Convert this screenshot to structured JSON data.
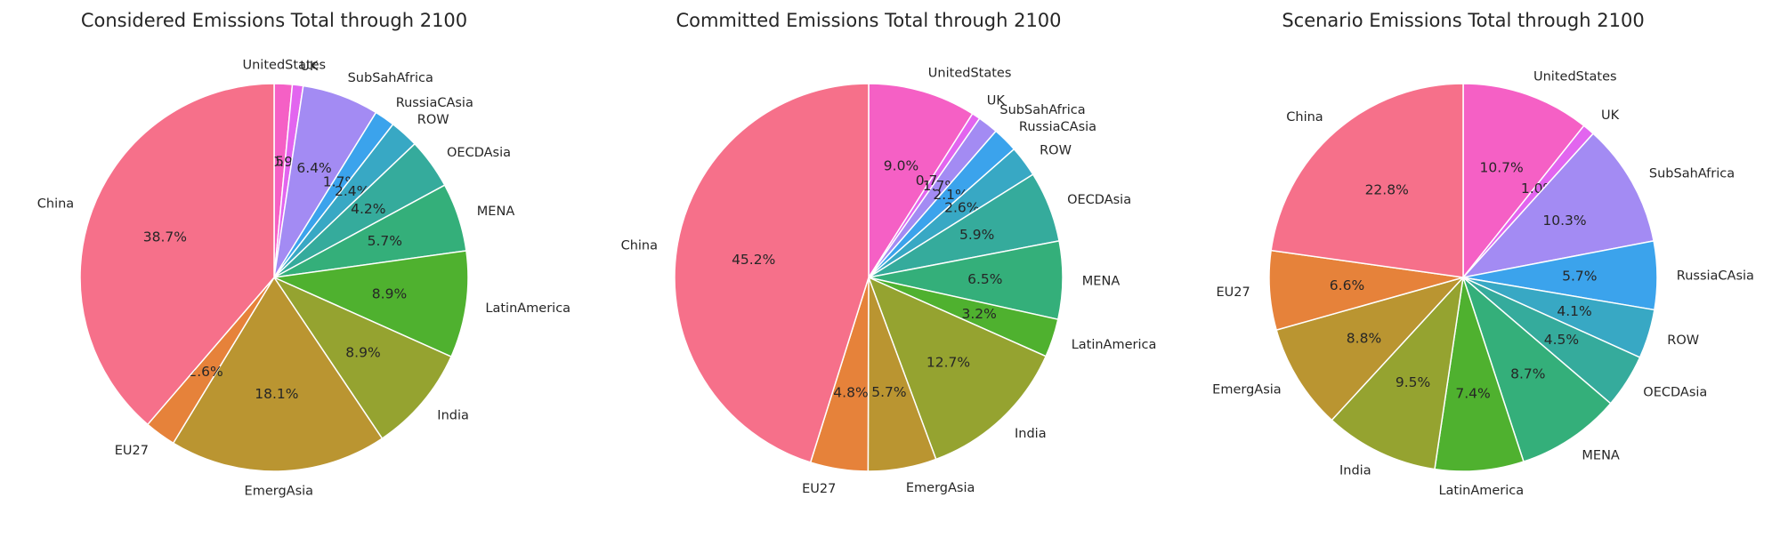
{
  "regions": [
    "UnitedStates",
    "UK",
    "SubSahAfrica",
    "RussiaCAsia",
    "ROW",
    "OECDAsia",
    "MENA",
    "LatinAmerica",
    "India",
    "EmergAsia",
    "EU27",
    "China"
  ],
  "colors": [
    "#f560c5",
    "#e265ef",
    "#a38bf3",
    "#3ba3ec",
    "#38a8c4",
    "#35ab9c",
    "#34af7a",
    "#4fb12f",
    "#95a330",
    "#ba9531",
    "#e6823a",
    "#f6708a"
  ],
  "chart_data": [
    {
      "type": "pie",
      "title": "Considered Emissions Total through 2100",
      "labels": [
        "UnitedStates",
        "UK",
        "SubSahAfrica",
        "RussiaCAsia",
        "ROW",
        "OECDAsia",
        "MENA",
        "LatinAmerica",
        "India",
        "EmergAsia",
        "EU27",
        "China"
      ],
      "values": [
        1.5,
        0.9,
        6.4,
        1.7,
        2.4,
        4.2,
        5.7,
        8.9,
        8.9,
        18.1,
        2.6,
        38.7
      ],
      "autopct_labels": [
        "1.5%",
        "0.9%",
        "6.4%",
        "1.7%",
        "2.4%",
        "4.2%",
        "5.7%",
        "8.9%",
        "8.9%",
        "18.1%",
        "2.6%",
        "38.7%"
      ],
      "start_angle": 90,
      "direction": "clockwise"
    },
    {
      "type": "pie",
      "title": "Committed Emissions Total through 2100",
      "labels": [
        "UnitedStates",
        "UK",
        "SubSahAfrica",
        "RussiaCAsia",
        "ROW",
        "OECDAsia",
        "MENA",
        "LatinAmerica",
        "India",
        "EmergAsia",
        "EU27",
        "China"
      ],
      "values": [
        9.0,
        0.7,
        1.7,
        2.1,
        2.6,
        5.9,
        6.5,
        3.2,
        12.7,
        5.7,
        4.8,
        45.2
      ],
      "autopct_labels": [
        "9.0%",
        "0.7%",
        "1.7%",
        "2.1%",
        "2.6%",
        "5.9%",
        "6.5%",
        "3.2%",
        "12.7%",
        "5.7%",
        "4.8%",
        "45.2%"
      ],
      "start_angle": 90,
      "direction": "clockwise"
    },
    {
      "type": "pie",
      "title": "Scenario Emissions Total through 2100",
      "labels": [
        "UnitedStates",
        "UK",
        "SubSahAfrica",
        "RussiaCAsia",
        "ROW",
        "OECDAsia",
        "MENA",
        "LatinAmerica",
        "India",
        "EmergAsia",
        "EU27",
        "China"
      ],
      "values": [
        10.7,
        1.0,
        10.3,
        5.7,
        4.1,
        4.5,
        8.7,
        7.4,
        9.5,
        8.8,
        6.6,
        22.8
      ],
      "autopct_labels": [
        "10.7%",
        "1.0%",
        "10.3%",
        "5.7%",
        "4.1%",
        "4.5%",
        "8.7%",
        "7.4%",
        "9.5%",
        "8.8%",
        "6.6%",
        "22.8%"
      ],
      "start_angle": 90,
      "direction": "clockwise"
    }
  ]
}
